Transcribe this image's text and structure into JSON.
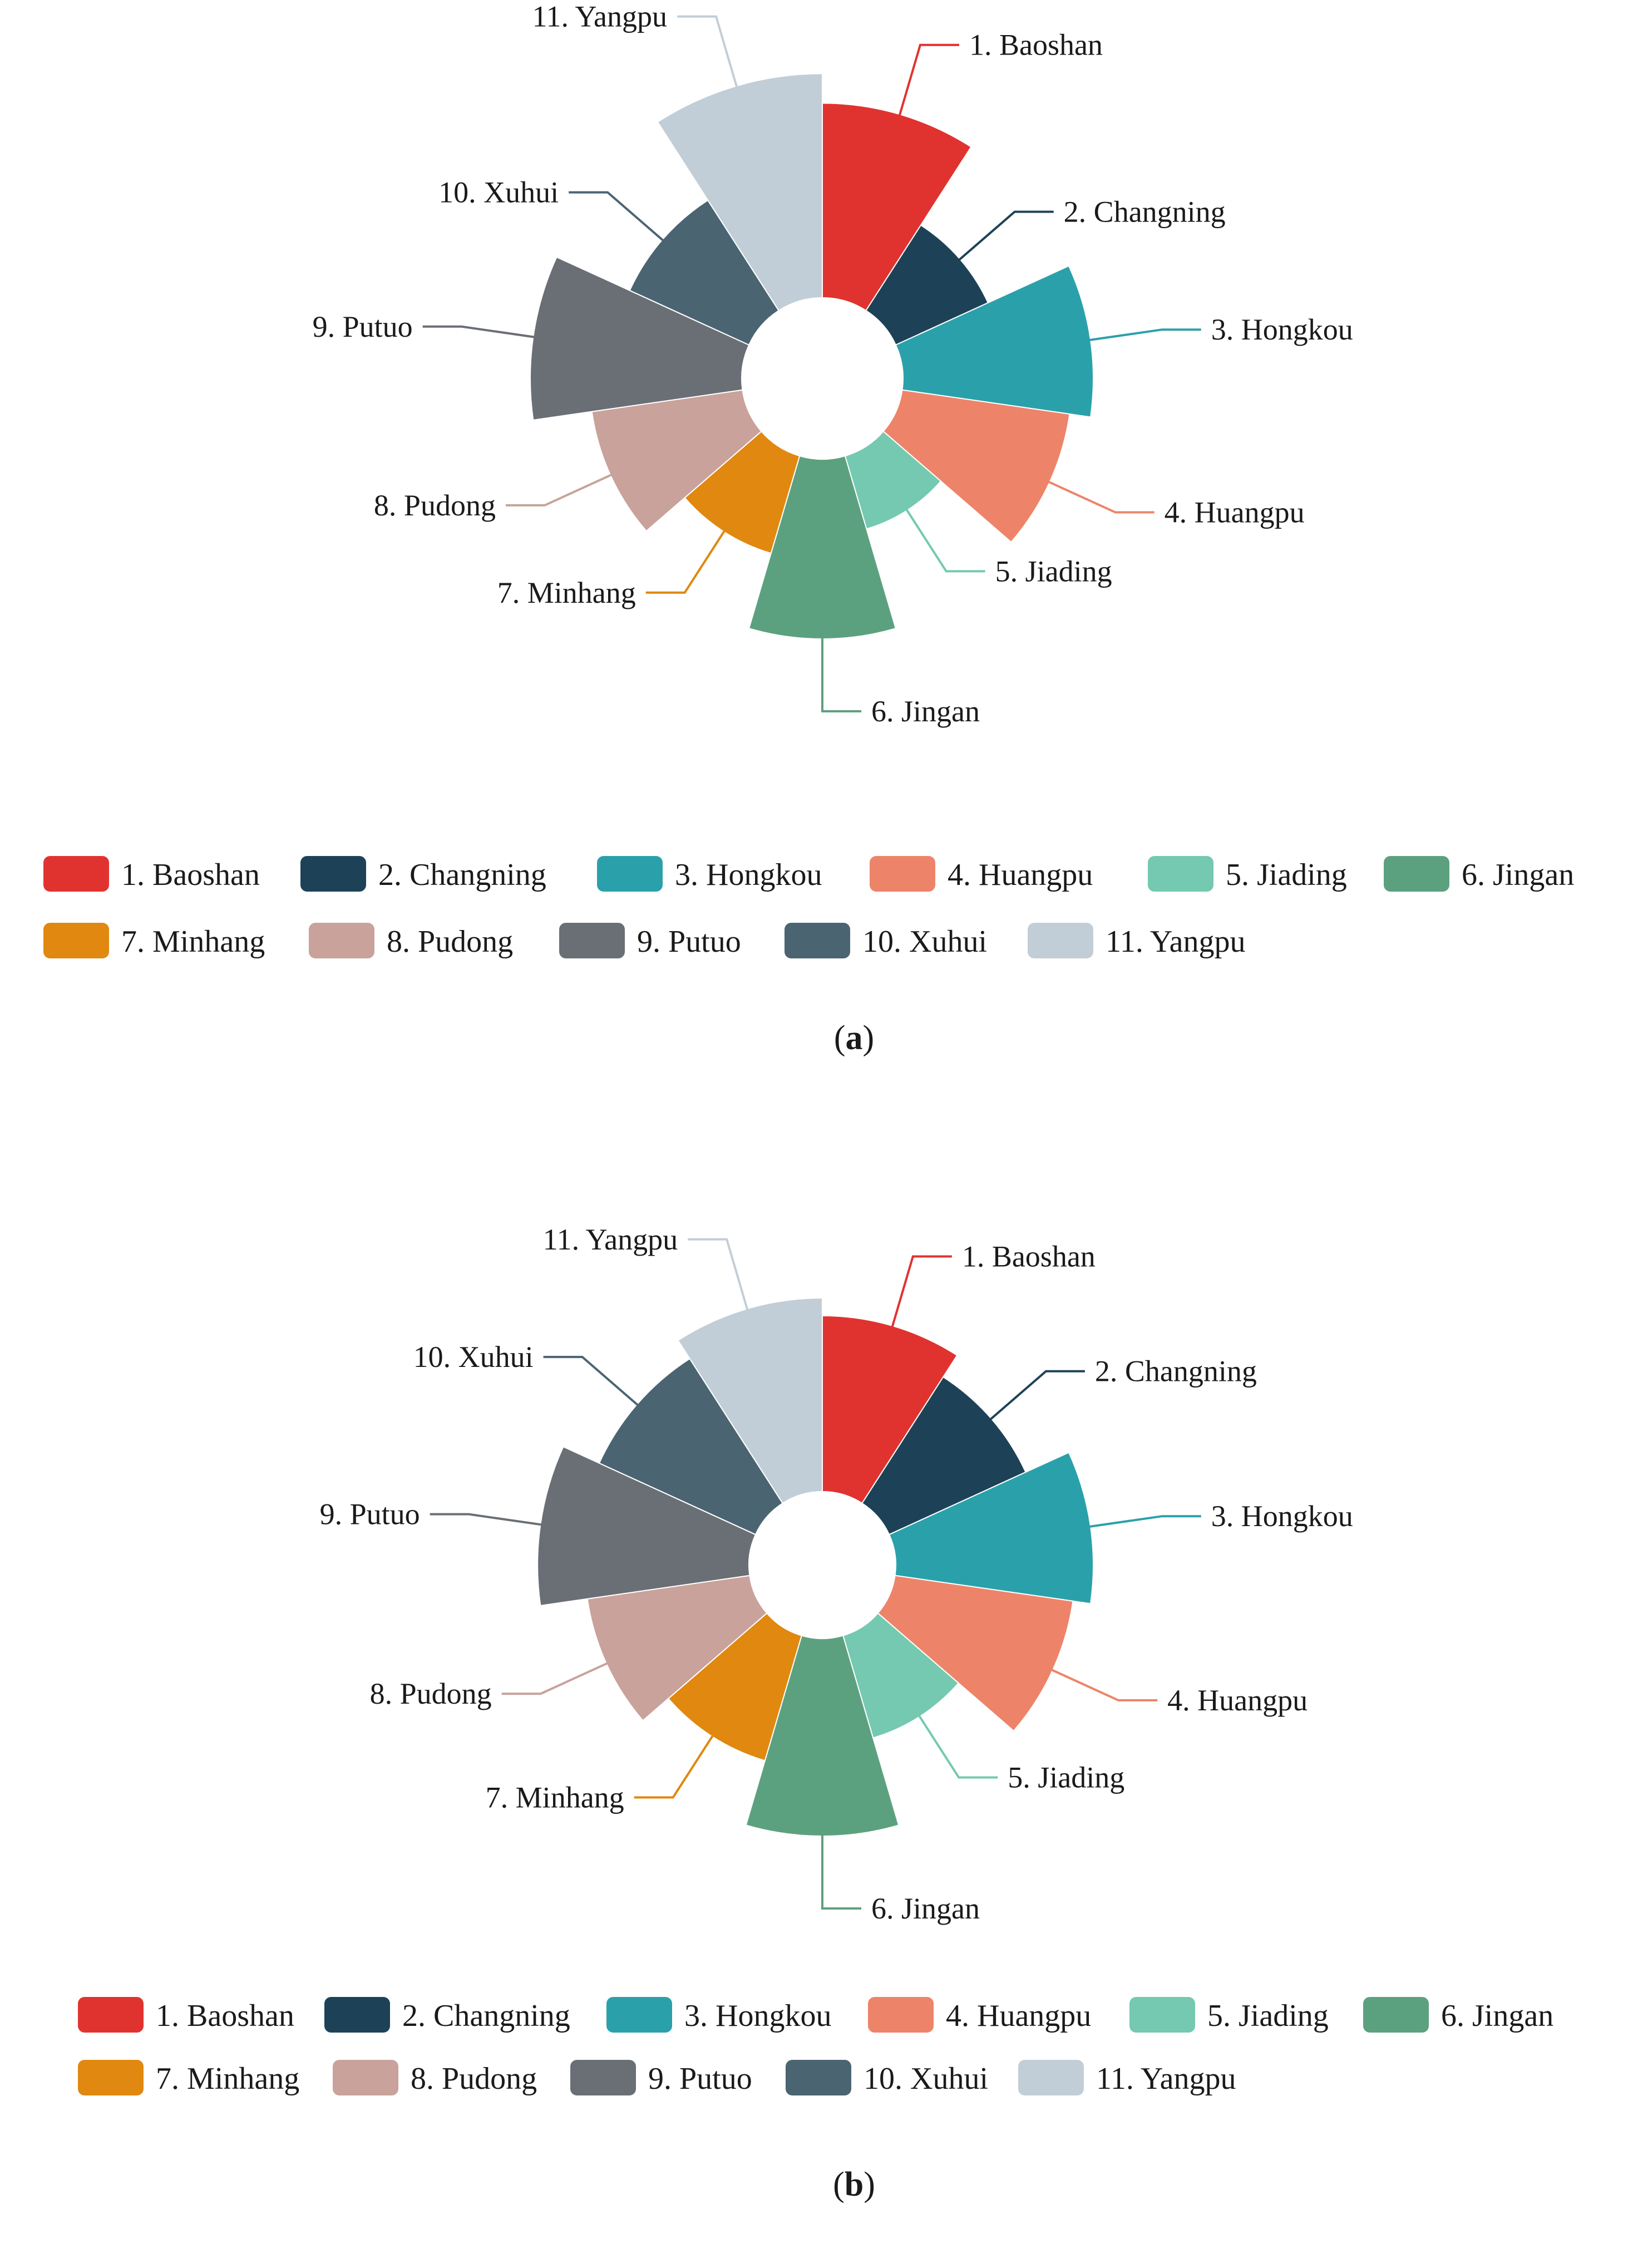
{
  "chart_data": [
    {
      "type": "nightingale-rose",
      "panel": "(a)",
      "panel_letter": "a",
      "categories": [
        "1. Baoshan",
        "2. Changning",
        "3. Hongkou",
        "4. Huangpu",
        "5. Jiading",
        "6. Jingan",
        "7. Minhang",
        "8. Pudong",
        "9. Putuo",
        "10. Xuhui",
        "11. Yangpu"
      ],
      "values": [
        0.92,
        0.48,
        0.9,
        0.8,
        0.36,
        0.85,
        0.48,
        0.72,
        1.0,
        0.62,
        1.06
      ],
      "legend_position": "bottom"
    },
    {
      "type": "nightingale-rose",
      "panel": "(b)",
      "panel_letter": "b",
      "categories": [
        "1. Baoshan",
        "2. Changning",
        "3. Hongkou",
        "4. Huangpu",
        "5. Jiading",
        "6. Jingan",
        "7. Minhang",
        "8. Pudong",
        "9. Putuo",
        "10. Xuhui",
        "11. Yangpu"
      ],
      "values": [
        0.89,
        0.76,
        1.0,
        0.91,
        0.54,
        1.0,
        0.66,
        0.83,
        1.07,
        0.87,
        0.98
      ],
      "legend_position": "bottom"
    }
  ],
  "colors": [
    "#e03330",
    "#1d4257",
    "#2aa1aa",
    "#ed8469",
    "#74c9b0",
    "#5ca17f",
    "#e0880f",
    "#c8a29b",
    "#6a6f76",
    "#4a6472",
    "#c2ced7"
  ]
}
